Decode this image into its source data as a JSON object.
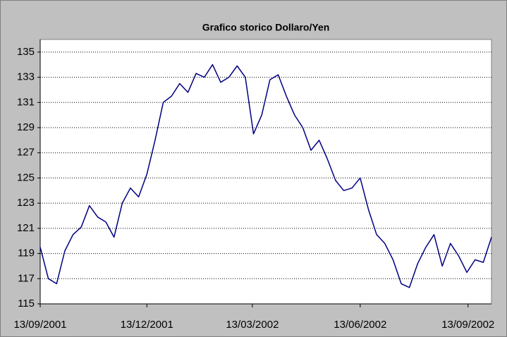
{
  "chart_data": {
    "type": "line",
    "title": "Grafico storico Dollaro/Yen",
    "x": [
      "13/09/2001",
      "20/09/2001",
      "27/09/2001",
      "04/10/2001",
      "11/10/2001",
      "18/10/2001",
      "25/10/2001",
      "01/11/2001",
      "08/11/2001",
      "15/11/2001",
      "22/11/2001",
      "29/11/2001",
      "06/12/2001",
      "13/12/2001",
      "20/12/2001",
      "27/12/2001",
      "03/01/2002",
      "10/01/2002",
      "17/01/2002",
      "24/01/2002",
      "31/01/2002",
      "07/02/2002",
      "14/02/2002",
      "21/02/2002",
      "28/02/2002",
      "07/03/2002",
      "14/03/2002",
      "21/03/2002",
      "28/03/2002",
      "04/04/2002",
      "11/04/2002",
      "18/04/2002",
      "25/04/2002",
      "02/05/2002",
      "09/05/2002",
      "16/05/2002",
      "23/05/2002",
      "30/05/2002",
      "06/06/2002",
      "13/06/2002",
      "20/06/2002",
      "27/06/2002",
      "04/07/2002",
      "11/07/2002",
      "18/07/2002",
      "25/07/2002",
      "01/08/2002",
      "08/08/2002",
      "15/08/2002",
      "22/08/2002",
      "29/08/2002",
      "05/09/2002",
      "12/09/2002",
      "19/09/2002",
      "26/09/2002",
      "03/10/2002"
    ],
    "series": [
      {
        "color": "#000080",
        "values": [
          119.5,
          117.0,
          116.6,
          119.2,
          120.5,
          121.1,
          122.8,
          121.9,
          121.5,
          120.3,
          123.0,
          124.2,
          123.5,
          125.3,
          128.0,
          131.0,
          131.5,
          132.5,
          131.8,
          133.3,
          133.0,
          134.0,
          132.6,
          133.0,
          133.9,
          133.0,
          128.5,
          130.0,
          132.8,
          133.2,
          131.5,
          130.0,
          129.0,
          127.2,
          128.0,
          126.5,
          124.8,
          124.0,
          124.2,
          125.0,
          122.5,
          120.5,
          119.8,
          118.5,
          116.6,
          116.3,
          118.2,
          119.5,
          120.5,
          118.0,
          119.8,
          118.8,
          117.5,
          118.5,
          118.3,
          120.3
        ]
      }
    ],
    "xlim": [
      "13/09/2001",
      "03/10/2002"
    ],
    "xticks": [
      "13/09/2001",
      "13/12/2001",
      "13/03/2002",
      "13/06/2002",
      "13/09/2002"
    ],
    "ylim": [
      115,
      136
    ],
    "yticks": [
      115,
      117,
      119,
      121,
      123,
      125,
      127,
      129,
      131,
      133,
      135
    ],
    "grid": true
  }
}
